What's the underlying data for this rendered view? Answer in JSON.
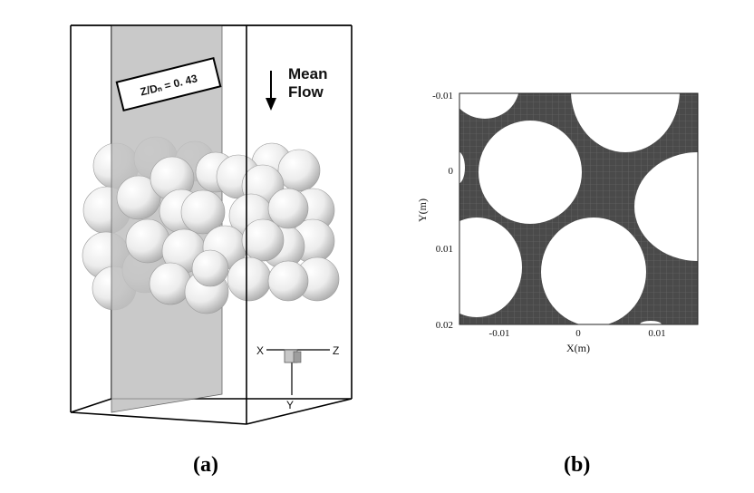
{
  "panel_a": {
    "plane_label": "Z/Dₙ = 0. 43",
    "flow_label_line1": "Mean",
    "flow_label_line2": "Flow",
    "axis_x": "X",
    "axis_z": "Z",
    "axis_y": "Y",
    "caption": "(a)"
  },
  "panel_b": {
    "xlabel": "X(m)",
    "ylabel": "Y(m)",
    "x_ticks": [
      "-0.01",
      "0",
      "0.01"
    ],
    "y_ticks": [
      "-0.01",
      "0",
      "0.01",
      "0.02"
    ],
    "caption": "(b)"
  }
}
